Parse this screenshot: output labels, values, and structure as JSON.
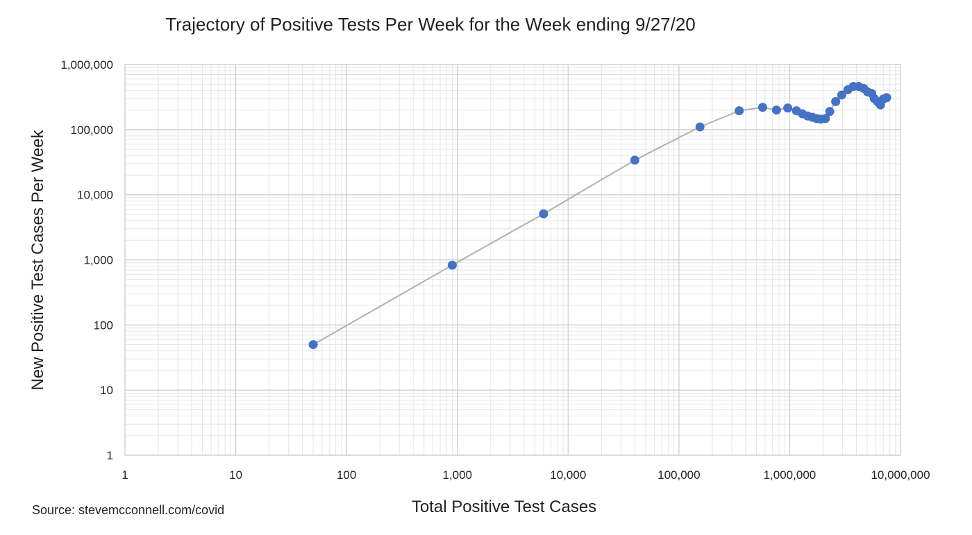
{
  "chart_data": {
    "type": "scatter",
    "title": "Trajectory of Positive Tests Per Week for the Week ending 9/27/20",
    "xlabel": "Total Positive Test Cases",
    "ylabel": "New Positive Test Cases Per Week",
    "source": "Source: stevemcconnell.com/covid",
    "x_scale": "log",
    "y_scale": "log",
    "xlim": [
      1,
      10000000
    ],
    "ylim": [
      1,
      1000000
    ],
    "x_ticks": [
      {
        "value": 1,
        "label": "1"
      },
      {
        "value": 10,
        "label": "10"
      },
      {
        "value": 100,
        "label": "100"
      },
      {
        "value": 1000,
        "label": "1,000"
      },
      {
        "value": 10000,
        "label": "10,000"
      },
      {
        "value": 100000,
        "label": "100,000"
      },
      {
        "value": 1000000,
        "label": "1,000,000"
      },
      {
        "value": 10000000,
        "label": "10,000,000"
      }
    ],
    "y_ticks": [
      {
        "value": 1,
        "label": "1"
      },
      {
        "value": 10,
        "label": "10"
      },
      {
        "value": 100,
        "label": "100"
      },
      {
        "value": 1000,
        "label": "1,000"
      },
      {
        "value": 10000,
        "label": "10,000"
      },
      {
        "value": 100000,
        "label": "100,000"
      },
      {
        "value": 1000000,
        "label": "1,000,000"
      }
    ],
    "grid": true,
    "legend": "none",
    "marker_color": "#4472c4",
    "line_color": "#b0b0b0",
    "series": [
      {
        "points": [
          {
            "x": 50,
            "y": 50
          },
          {
            "x": 900,
            "y": 830
          },
          {
            "x": 6000,
            "y": 5100
          },
          {
            "x": 40000,
            "y": 34000
          },
          {
            "x": 155000,
            "y": 110000
          },
          {
            "x": 350000,
            "y": 195000
          },
          {
            "x": 570000,
            "y": 220000
          },
          {
            "x": 760000,
            "y": 200000
          },
          {
            "x": 960000,
            "y": 215000
          },
          {
            "x": 1150000,
            "y": 195000
          },
          {
            "x": 1300000,
            "y": 175000
          },
          {
            "x": 1450000,
            "y": 162000
          },
          {
            "x": 1600000,
            "y": 155000
          },
          {
            "x": 1750000,
            "y": 148000
          },
          {
            "x": 1900000,
            "y": 145000
          },
          {
            "x": 2100000,
            "y": 148000
          },
          {
            "x": 2300000,
            "y": 190000
          },
          {
            "x": 2600000,
            "y": 270000
          },
          {
            "x": 2950000,
            "y": 340000
          },
          {
            "x": 3350000,
            "y": 410000
          },
          {
            "x": 3750000,
            "y": 460000
          },
          {
            "x": 4200000,
            "y": 460000
          },
          {
            "x": 4650000,
            "y": 430000
          },
          {
            "x": 5050000,
            "y": 380000
          },
          {
            "x": 5500000,
            "y": 360000
          },
          {
            "x": 5800000,
            "y": 300000
          },
          {
            "x": 6200000,
            "y": 270000
          },
          {
            "x": 6600000,
            "y": 240000
          },
          {
            "x": 7000000,
            "y": 295000
          },
          {
            "x": 7500000,
            "y": 310000
          }
        ]
      }
    ]
  }
}
